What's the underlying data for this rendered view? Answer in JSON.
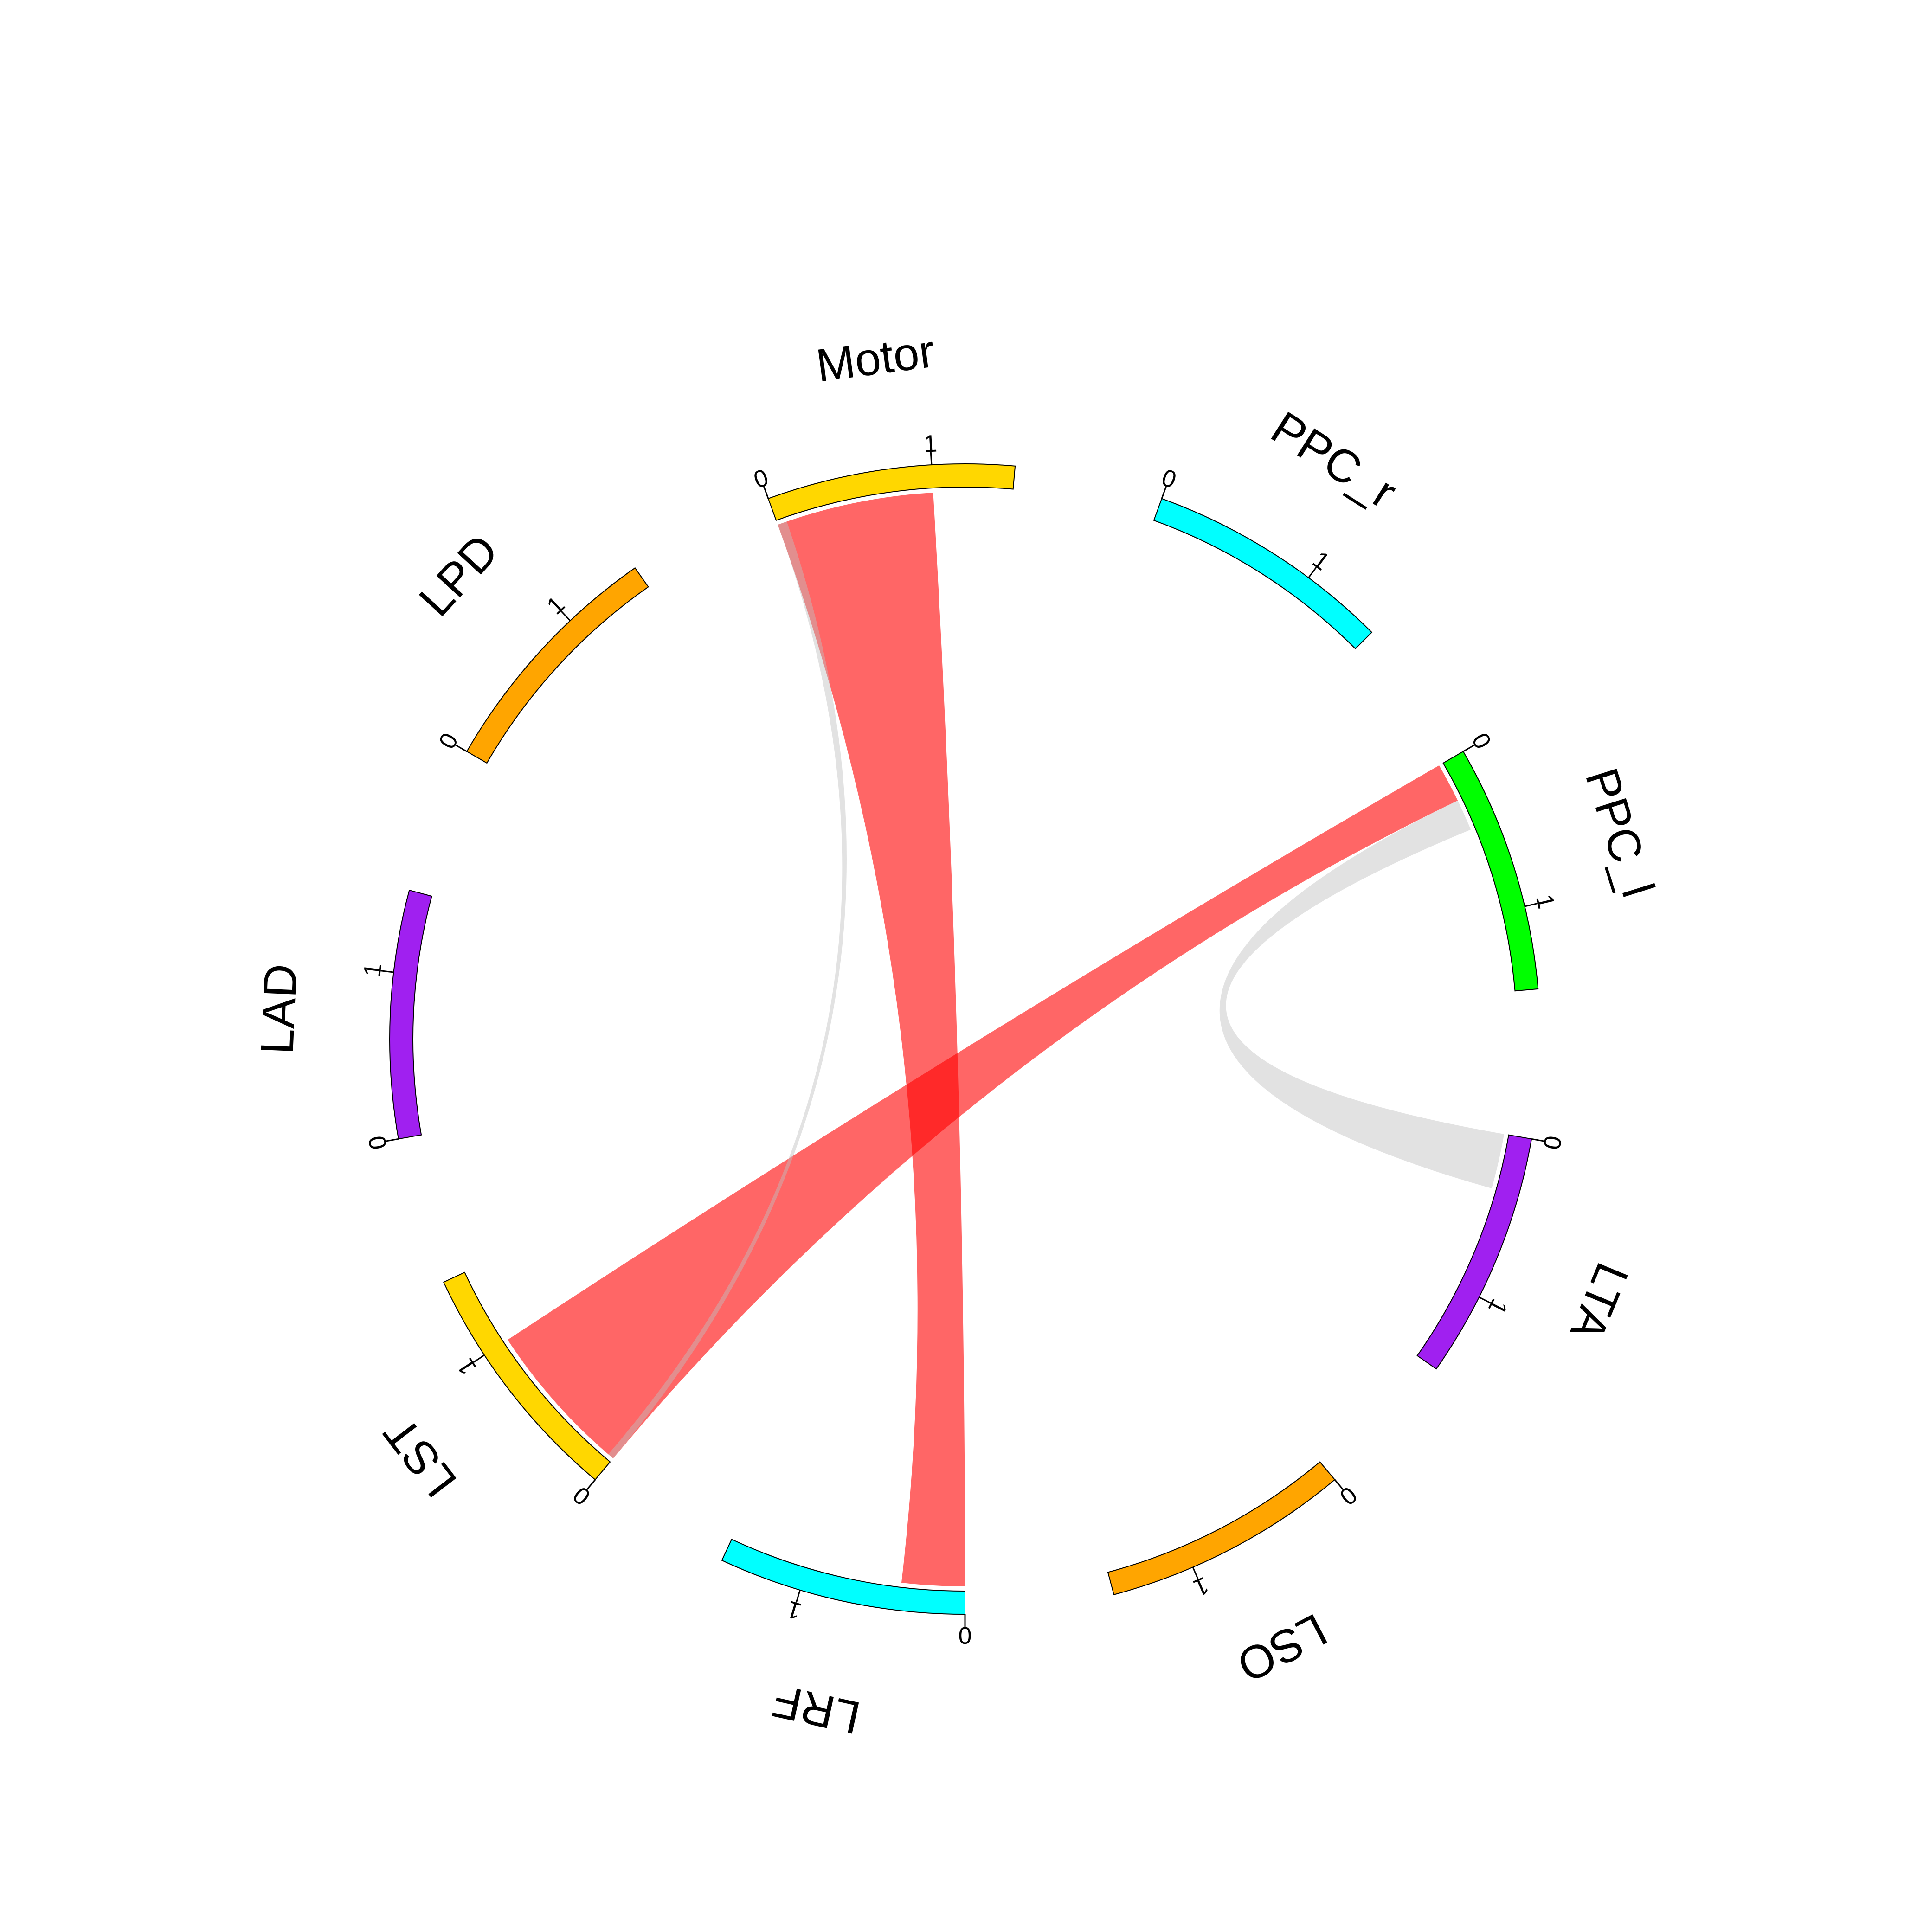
{
  "chart_data": {
    "type": "chord",
    "title": "",
    "sectors": [
      {
        "name": "PPC_r",
        "color": "#00FFFF",
        "axis_min": 0,
        "axis_max": 1.5,
        "ticks": [
          "0",
          "1"
        ]
      },
      {
        "name": "PPC_l",
        "color": "#00FF00",
        "axis_min": 0,
        "axis_max": 1.5,
        "ticks": [
          "0",
          "1"
        ]
      },
      {
        "name": "LTA",
        "color": "#A020F0",
        "axis_min": 0,
        "axis_max": 1.5,
        "ticks": [
          "0",
          "1"
        ]
      },
      {
        "name": "LSO",
        "color": "#FFA500",
        "axis_min": 0,
        "axis_max": 1.5,
        "ticks": [
          "0",
          "1"
        ]
      },
      {
        "name": "LRF",
        "color": "#00FFFF",
        "axis_min": 0,
        "axis_max": 1.5,
        "ticks": [
          "0",
          "1"
        ]
      },
      {
        "name": "LST",
        "color": "#FFD700",
        "axis_min": 0,
        "axis_max": 1.5,
        "ticks": [
          "0",
          "1"
        ]
      },
      {
        "name": "LAD",
        "color": "#A020F0",
        "axis_min": 0,
        "axis_max": 1.5,
        "ticks": [
          "0",
          "1"
        ]
      },
      {
        "name": "LPD",
        "color": "#FFA500",
        "axis_min": 0,
        "axis_max": 1.5,
        "ticks": [
          "0",
          "1"
        ]
      },
      {
        "name": "Motor",
        "color": "#FFD700",
        "axis_min": 0,
        "axis_max": 1.5,
        "ticks": [
          "0",
          "1"
        ]
      }
    ],
    "links": [
      {
        "from": "Motor",
        "to": "LRF",
        "from_range": [
          0,
          1.0
        ],
        "to_range": [
          0,
          0.4
        ],
        "color": "#FF0000",
        "opacity": 0.6
      },
      {
        "from": "PPC_l",
        "to": "LST",
        "from_range": [
          0,
          0.25
        ],
        "to_range": [
          0,
          1.0
        ],
        "color": "#FF0000",
        "opacity": 0.6
      },
      {
        "from": "PPC_l",
        "to": "LTA",
        "from_range": [
          0.25,
          0.45
        ],
        "to_range": [
          0,
          0.35
        ],
        "color": "#BEBEBE",
        "opacity": 0.45
      },
      {
        "from": "Motor",
        "to": "LST",
        "from_range": [
          0,
          0.06
        ],
        "to_range": [
          0,
          0.04
        ],
        "color": "#BEBEBE",
        "opacity": 0.45
      }
    ]
  }
}
